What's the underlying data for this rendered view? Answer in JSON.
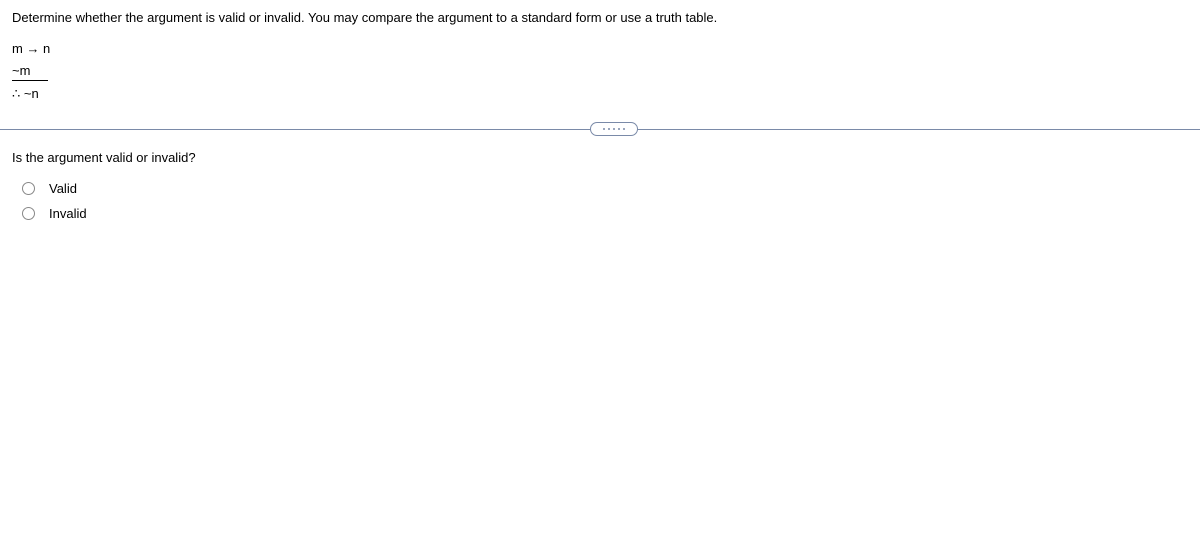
{
  "instruction": "Determine whether the argument is valid or invalid. You may compare the argument to a standard form or use a truth table.",
  "argument": {
    "premise1": "m → n",
    "premise2": "~m",
    "conclusion": "∴ ~n"
  },
  "question": "Is the argument valid or invalid?",
  "options": [
    {
      "label": "Valid"
    },
    {
      "label": "Invalid"
    }
  ],
  "colors": {
    "divider": "#7a8aa8",
    "text": "#000000",
    "background": "#ffffff",
    "radio_border": "#888888"
  }
}
